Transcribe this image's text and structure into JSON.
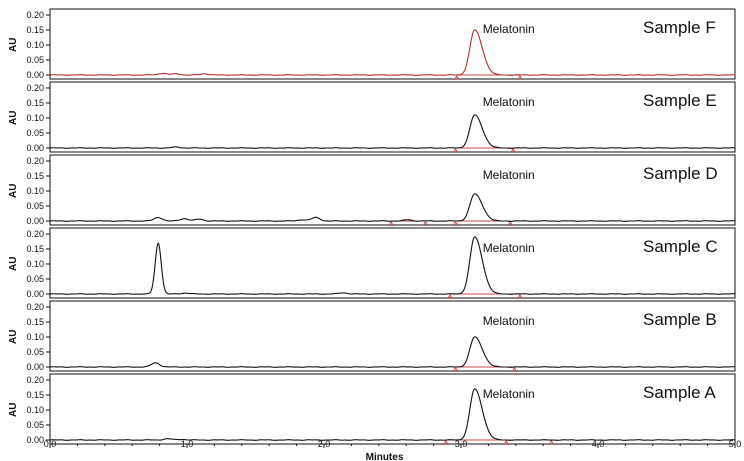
{
  "chart_data": {
    "type": "line",
    "xlabel": "Minutes",
    "ylabel": "AU",
    "xlim": [
      0.0,
      5.0
    ],
    "x_ticks": [
      "0.0",
      "1.0",
      "2.0",
      "3.0",
      "4.0",
      "5.0"
    ],
    "ylim": [
      0.0,
      0.2
    ],
    "y_ticks": [
      "0.00",
      "0.05",
      "0.10",
      "0.15",
      "0.20"
    ],
    "colors": {
      "trace": "#111111",
      "integration": "#c94a4a",
      "axis": "#111111",
      "background": "#ffffff"
    },
    "panels": [
      {
        "sample_label": "Sample F",
        "peak_label": "Melatonin",
        "trace_color": "#b52b2b",
        "peak": {
          "retention_time": 3.1,
          "height": 0.15
        },
        "minor_peaks": [
          {
            "x": 0.82,
            "height": 0.006
          },
          {
            "x": 0.92,
            "height": 0.004
          },
          {
            "x": 1.13,
            "height": 0.004
          }
        ],
        "integration": {
          "start": 2.97,
          "end": 3.43,
          "markers": [
            2.97,
            3.43
          ]
        }
      },
      {
        "sample_label": "Sample E",
        "peak_label": "Melatonin",
        "trace_color": "#111111",
        "peak": {
          "retention_time": 3.1,
          "height": 0.11
        },
        "minor_peaks": [
          {
            "x": 0.92,
            "height": 0.003
          }
        ],
        "integration": {
          "start": 2.96,
          "end": 3.38,
          "markers": [
            2.96,
            3.38
          ]
        }
      },
      {
        "sample_label": "Sample D",
        "peak_label": "Melatonin",
        "trace_color": "#111111",
        "peak": {
          "retention_time": 3.1,
          "height": 0.09
        },
        "minor_peaks": [
          {
            "x": 0.79,
            "height": 0.012
          },
          {
            "x": 0.98,
            "height": 0.008
          },
          {
            "x": 1.09,
            "height": 0.006
          },
          {
            "x": 1.84,
            "height": 0.004
          },
          {
            "x": 1.94,
            "height": 0.012
          },
          {
            "x": 2.61,
            "height": 0.004
          }
        ],
        "integration": {
          "start": 2.96,
          "end": 3.36,
          "markers": [
            2.49,
            2.74,
            2.96,
            3.36
          ]
        }
      },
      {
        "sample_label": "Sample C",
        "peak_label": "Melatonin",
        "trace_color": "#111111",
        "peak": {
          "retention_time": 3.1,
          "height": 0.19
        },
        "minor_peaks": [
          {
            "x": 0.79,
            "height": 0.17
          },
          {
            "x": 0.99,
            "height": 0.003
          },
          {
            "x": 2.14,
            "height": 0.004
          }
        ],
        "integration": {
          "start": 2.92,
          "end": 3.43,
          "markers": [
            2.92,
            3.43
          ]
        }
      },
      {
        "sample_label": "Sample B",
        "peak_label": "Melatonin",
        "trace_color": "#111111",
        "peak": {
          "retention_time": 3.1,
          "height": 0.1
        },
        "minor_peaks": [
          {
            "x": 0.77,
            "height": 0.014
          }
        ],
        "integration": {
          "start": 2.96,
          "end": 3.39,
          "markers": [
            2.96,
            3.39
          ]
        }
      },
      {
        "sample_label": "Sample A",
        "peak_label": "Melatonin",
        "trace_color": "#111111",
        "peak": {
          "retention_time": 3.1,
          "height": 0.17
        },
        "minor_peaks": [
          {
            "x": 0.86,
            "height": 0.004
          },
          {
            "x": 0.96,
            "height": 0.002
          }
        ],
        "integration": {
          "start": 2.89,
          "end": 3.66,
          "markers": [
            2.89,
            3.33,
            3.66
          ]
        }
      }
    ]
  }
}
